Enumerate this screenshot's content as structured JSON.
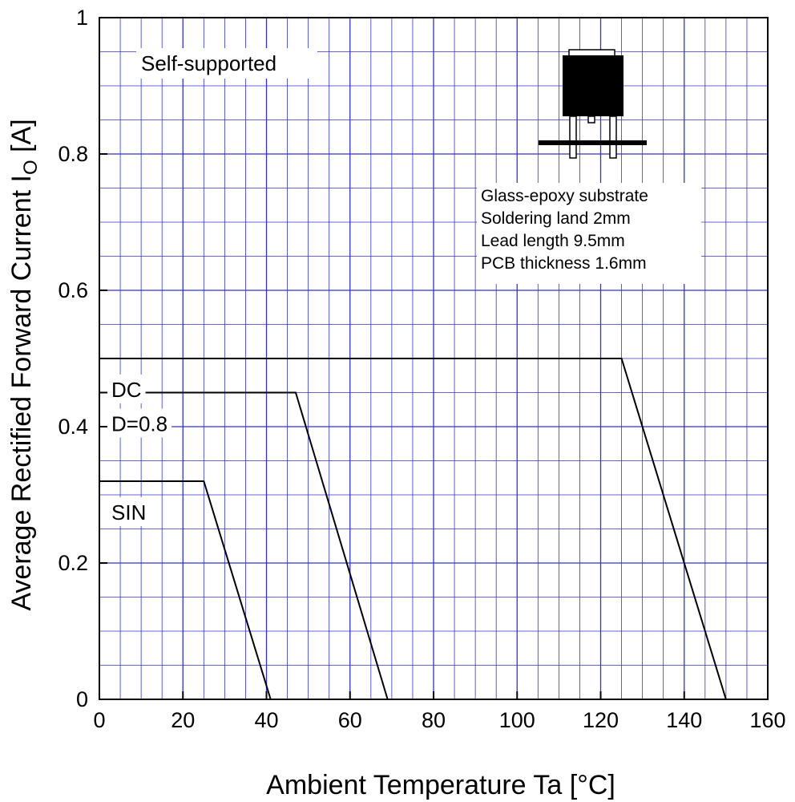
{
  "chart_data": {
    "type": "line",
    "xlabel": "Ambient Temperature  Ta  [°C]",
    "ylabel_main": "Average Rectified Forward Current  I",
    "ylabel_sub": "O",
    "ylabel_unit": " [A]",
    "xlim": [
      0,
      160
    ],
    "ylim": [
      0,
      1
    ],
    "x_ticks": [
      "0",
      "20",
      "40",
      "60",
      "80",
      "100",
      "120",
      "140",
      "160"
    ],
    "y_ticks": [
      "0",
      "0.2",
      "0.4",
      "0.6",
      "0.8",
      "1"
    ],
    "grid": true,
    "annotation": "Self-supported",
    "notes": [
      "Glass-epoxy  substrate",
      "Soldering land 2mm",
      "Lead length 9.5mm",
      "PCB thickness 1.6mm"
    ],
    "series": [
      {
        "name": "DC",
        "x": [
          0,
          125,
          150
        ],
        "y": [
          0.5,
          0.5,
          0
        ]
      },
      {
        "name": "D=0.8",
        "x": [
          0,
          47,
          69
        ],
        "y": [
          0.45,
          0.45,
          0
        ]
      },
      {
        "name": "SIN",
        "x": [
          0,
          25,
          41
        ],
        "y": [
          0.32,
          0.32,
          0
        ]
      }
    ],
    "colors": {
      "grid": "#3333cc",
      "line": "#000000"
    }
  }
}
